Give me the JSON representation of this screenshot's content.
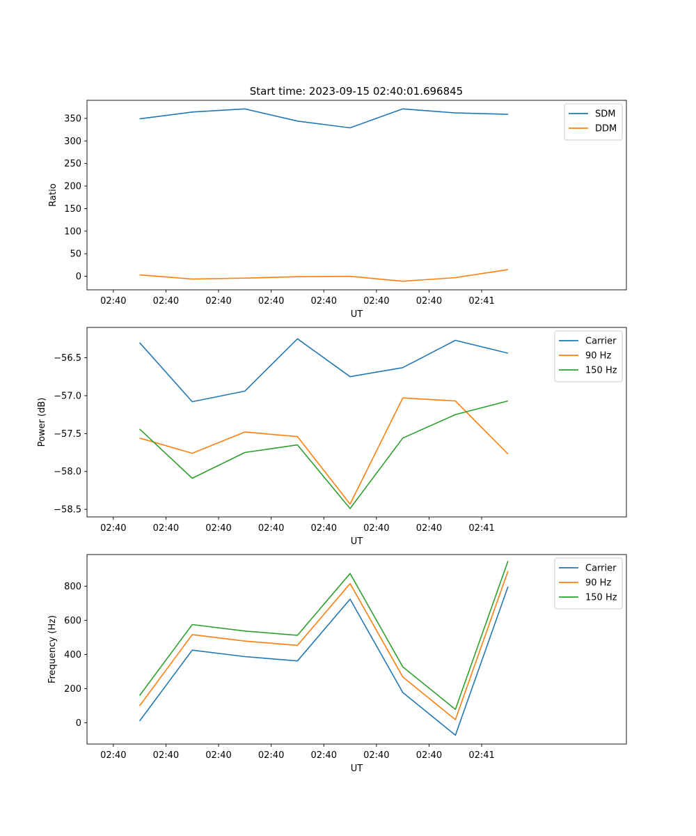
{
  "figure": {
    "title": "Start time: 2023-09-15 02:40:01.696845"
  },
  "chart_data": [
    {
      "type": "line",
      "title": "Start time: 2023-09-15 02:40:01.696845",
      "xlabel": "UT",
      "ylabel": "Ratio",
      "xticks": [
        "02:40",
        "02:40",
        "02:40",
        "02:40",
        "02:40",
        "02:40",
        "02:40",
        "02:41"
      ],
      "xlim": [
        -0.5,
        9.75
      ],
      "x": [
        0.5,
        1.5,
        2.5,
        3.5,
        4.5,
        5.5,
        6.5,
        7.5
      ],
      "ylim": [
        -30,
        390
      ],
      "yticks": [
        0,
        50,
        100,
        150,
        200,
        250,
        300,
        350
      ],
      "ytick_labels": [
        "0",
        "50",
        "100",
        "150",
        "200",
        "250",
        "300",
        "350"
      ],
      "legend_position": "top-right",
      "series": [
        {
          "name": "SDM",
          "color": "#1f77b4",
          "values": [
            349,
            364,
            371,
            344,
            329,
            371,
            362,
            359
          ]
        },
        {
          "name": "DDM",
          "color": "#ff7f0e",
          "values": [
            3,
            -6,
            -4,
            -1,
            0,
            -11,
            -3,
            15
          ]
        }
      ]
    },
    {
      "type": "line",
      "title": "",
      "xlabel": "UT",
      "ylabel": "Power (dB)",
      "xticks": [
        "02:40",
        "02:40",
        "02:40",
        "02:40",
        "02:40",
        "02:40",
        "02:40",
        "02:41"
      ],
      "xlim": [
        -0.5,
        9.75
      ],
      "x": [
        0.5,
        1.5,
        2.5,
        3.5,
        4.5,
        5.5,
        6.5,
        7.5
      ],
      "ylim": [
        -58.6,
        -56.1
      ],
      "yticks": [
        -58.5,
        -58.0,
        -57.5,
        -57.0,
        -56.5
      ],
      "ytick_labels": [
        "−58.5",
        "−58.0",
        "−57.5",
        "−57.0",
        "−56.5"
      ],
      "legend_position": "top-right",
      "series": [
        {
          "name": "Carrier",
          "color": "#1f77b4",
          "values": [
            -56.3,
            -57.08,
            -56.94,
            -56.25,
            -56.75,
            -56.63,
            -56.27,
            -56.44
          ]
        },
        {
          "name": "90 Hz",
          "color": "#ff7f0e",
          "values": [
            -57.56,
            -57.76,
            -57.48,
            -57.54,
            -58.43,
            -57.03,
            -57.07,
            -57.77
          ]
        },
        {
          "name": "150 Hz",
          "color": "#2ca02c",
          "values": [
            -57.44,
            -58.09,
            -57.75,
            -57.65,
            -58.49,
            -57.56,
            -57.25,
            -57.07
          ]
        }
      ]
    },
    {
      "type": "line",
      "title": "",
      "xlabel": "UT",
      "ylabel": "Frequency (Hz)",
      "xticks": [
        "02:40",
        "02:40",
        "02:40",
        "02:40",
        "02:40",
        "02:40",
        "02:40",
        "02:41"
      ],
      "xlim": [
        -0.5,
        9.75
      ],
      "x": [
        0.5,
        1.5,
        2.5,
        3.5,
        4.5,
        5.5,
        6.5,
        7.5
      ],
      "ylim": [
        -125,
        985
      ],
      "yticks": [
        0,
        200,
        400,
        600,
        800
      ],
      "ytick_labels": [
        "0",
        "200",
        "400",
        "600",
        "800"
      ],
      "legend_position": "top-right",
      "series": [
        {
          "name": "Carrier",
          "color": "#1f77b4",
          "values": [
            10,
            425,
            387,
            362,
            724,
            177,
            -73,
            797
          ]
        },
        {
          "name": "90 Hz",
          "color": "#ff7f0e",
          "values": [
            99,
            516,
            478,
            453,
            815,
            268,
            18,
            888
          ]
        },
        {
          "name": "150 Hz",
          "color": "#2ca02c",
          "values": [
            159,
            575,
            537,
            512,
            874,
            327,
            78,
            947
          ]
        }
      ]
    }
  ]
}
